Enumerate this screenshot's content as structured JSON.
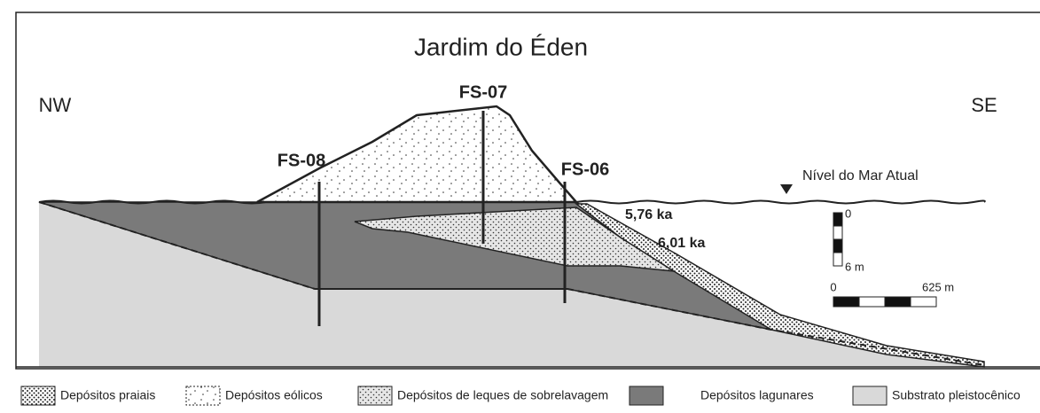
{
  "title": "Jardim do Éden",
  "orientation": {
    "left": "NW",
    "right": "SE"
  },
  "boreholes": [
    "FS-08",
    "FS-07",
    "FS-06"
  ],
  "sea_level": "Nível do Mar Atual",
  "ages": [
    "5,76 ka",
    "6,01 ka"
  ],
  "scales": {
    "vertical": {
      "top": "0",
      "bottom": "6 m"
    },
    "horizontal": {
      "start": "0",
      "end": "625 m"
    }
  },
  "legend": [
    "Depósitos praiais",
    "Depósitos eólicos",
    "Depósitos de leques de sobrelavagem",
    "Depósitos lagunares",
    "Substrato pleistocênico"
  ]
}
